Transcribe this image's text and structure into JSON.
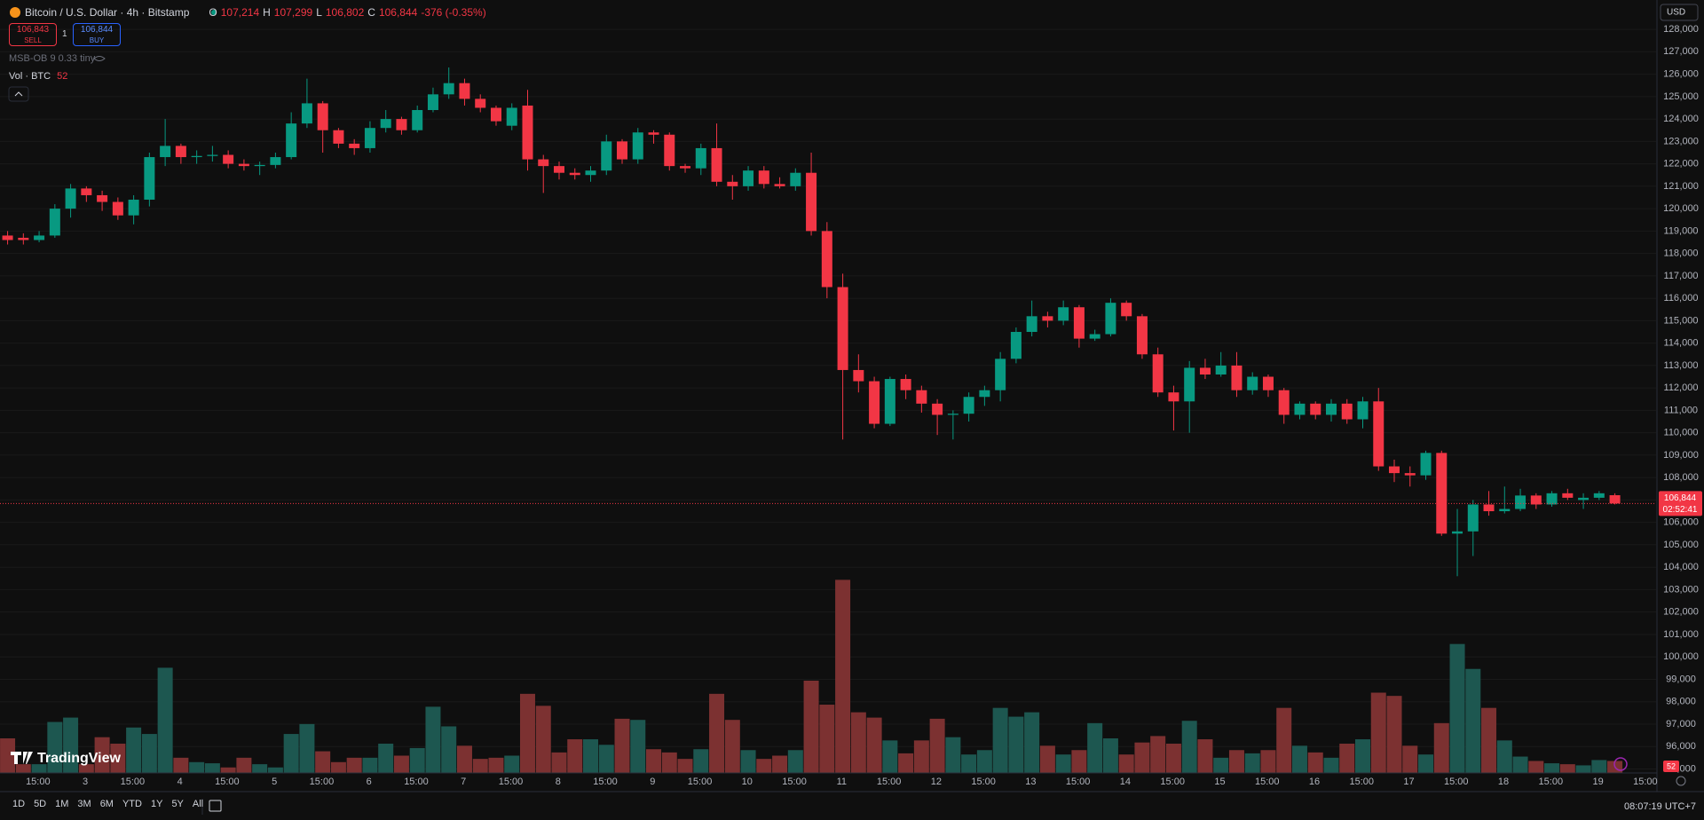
{
  "header": {
    "symbol": "Bitcoin / U.S. Dollar · 4h · Bitstamp",
    "open_label": "O",
    "open": "107,214",
    "high_label": "H",
    "high": "107,299",
    "low_label": "L",
    "low": "106,802",
    "close_label": "C",
    "close": "106,844",
    "change": "-376 (-0.35%)"
  },
  "trade": {
    "sell_price": "106,843",
    "sell": "SELL",
    "quantity": "1",
    "buy_price": "106,844",
    "buy": "BUY"
  },
  "indicators": [
    "MSB-OB 9 0.33 tiny"
  ],
  "volume_legend": {
    "label": "Vol · BTC",
    "value": "52"
  },
  "price_tag": {
    "price": "106,844",
    "countdown": "02:52:41"
  },
  "currency": "USD",
  "ranges": [
    "1D",
    "5D",
    "1M",
    "3M",
    "6M",
    "YTD",
    "1Y",
    "5Y",
    "All"
  ],
  "clock": "08:07:19 UTC+7",
  "brand": "TradingView",
  "chart_data": {
    "type": "candlestick",
    "up_color": "#089981",
    "down_color": "#f23645",
    "volume_up_color": "#1d5750",
    "volume_down_color": "#7c3131",
    "grid": true,
    "ylim": [
      94860,
      129310
    ],
    "yticks": [
      {
        "value": 128000,
        "label": "128,000"
      },
      {
        "value": 127000,
        "label": "127,000"
      },
      {
        "value": 126000,
        "label": "126,000"
      },
      {
        "value": 125000,
        "label": "125,000"
      },
      {
        "value": 124000,
        "label": "124,000"
      },
      {
        "value": 123000,
        "label": "123,000"
      },
      {
        "value": 122000,
        "label": "122,000"
      },
      {
        "value": 121000,
        "label": "121,000"
      },
      {
        "value": 120000,
        "label": "120,000"
      },
      {
        "value": 119000,
        "label": "119,000"
      },
      {
        "value": 118000,
        "label": "118,000"
      },
      {
        "value": 117000,
        "label": "117,000"
      },
      {
        "value": 116000,
        "label": "116,000"
      },
      {
        "value": 115000,
        "label": "115,000"
      },
      {
        "value": 114000,
        "label": "114,000"
      },
      {
        "value": 113000,
        "label": "113,000"
      },
      {
        "value": 112000,
        "label": "112,000"
      },
      {
        "value": 111000,
        "label": "111,000"
      },
      {
        "value": 110000,
        "label": "110,000"
      },
      {
        "value": 109000,
        "label": "109,000"
      },
      {
        "value": 108000,
        "label": "108,000"
      },
      {
        "value": 107000,
        "label": "107,000"
      },
      {
        "value": 106000,
        "label": "106,000"
      },
      {
        "value": 105000,
        "label": "105,000"
      },
      {
        "value": 104000,
        "label": "104,000"
      },
      {
        "value": 103000,
        "label": "103,000"
      },
      {
        "value": 102000,
        "label": "102,000"
      },
      {
        "value": 101000,
        "label": "101,000"
      },
      {
        "value": 100000,
        "label": "100,000"
      },
      {
        "value": 99000,
        "label": "99,000"
      },
      {
        "value": 98000,
        "label": "98,000"
      },
      {
        "value": 97000,
        "label": "97,000"
      },
      {
        "value": 96000,
        "label": "96,000"
      },
      {
        "value": 95000,
        "label": "95,000"
      }
    ],
    "time_labels": [
      "15:00",
      "3",
      "15:00",
      "4",
      "15:00",
      "5",
      "15:00",
      "6",
      "15:00",
      "7",
      "15:00",
      "8",
      "15:00",
      "9",
      "15:00",
      "10",
      "15:00",
      "11",
      "15:00",
      "12",
      "15:00",
      "13",
      "15:00",
      "14",
      "15:00",
      "15",
      "15:00",
      "16",
      "15:00",
      "17",
      "15:00",
      "18",
      "15:00",
      "19",
      "15:00"
    ],
    "candles": [
      {
        "open": 118800,
        "high": 119000,
        "low": 118400,
        "close": 118600
      },
      {
        "open": 118700,
        "high": 118900,
        "low": 118400,
        "close": 118600
      },
      {
        "open": 118600,
        "high": 119000,
        "low": 118500,
        "close": 118800
      },
      {
        "open": 118800,
        "high": 120200,
        "low": 118700,
        "close": 120000
      },
      {
        "open": 120000,
        "high": 121100,
        "low": 119600,
        "close": 120900
      },
      {
        "open": 120900,
        "high": 121000,
        "low": 120300,
        "close": 120600
      },
      {
        "open": 120600,
        "high": 120800,
        "low": 119900,
        "close": 120300
      },
      {
        "open": 120300,
        "high": 120500,
        "low": 119500,
        "close": 119700
      },
      {
        "open": 119700,
        "high": 120600,
        "low": 119300,
        "close": 120400
      },
      {
        "open": 120400,
        "high": 122500,
        "low": 120100,
        "close": 122300
      },
      {
        "open": 122300,
        "high": 124000,
        "low": 121900,
        "close": 122800
      },
      {
        "open": 122800,
        "high": 122900,
        "low": 122000,
        "close": 122300
      },
      {
        "open": 122300,
        "high": 122600,
        "low": 122000,
        "close": 122350
      },
      {
        "open": 122350,
        "high": 122800,
        "low": 122100,
        "close": 122400
      },
      {
        "open": 122400,
        "high": 122600,
        "low": 121800,
        "close": 122000
      },
      {
        "open": 122000,
        "high": 122200,
        "low": 121700,
        "close": 121900
      },
      {
        "open": 121900,
        "high": 122100,
        "low": 121500,
        "close": 121950
      },
      {
        "open": 121950,
        "high": 122500,
        "low": 121800,
        "close": 122300
      },
      {
        "open": 122300,
        "high": 124300,
        "low": 122200,
        "close": 123800
      },
      {
        "open": 123800,
        "high": 125800,
        "low": 123600,
        "close": 124700
      },
      {
        "open": 124700,
        "high": 124800,
        "low": 122500,
        "close": 123500
      },
      {
        "open": 123500,
        "high": 123600,
        "low": 122700,
        "close": 122900
      },
      {
        "open": 122900,
        "high": 123100,
        "low": 122400,
        "close": 122700
      },
      {
        "open": 122700,
        "high": 123900,
        "low": 122500,
        "close": 123600
      },
      {
        "open": 123600,
        "high": 124400,
        "low": 123400,
        "close": 124000
      },
      {
        "open": 124000,
        "high": 124100,
        "low": 123300,
        "close": 123500
      },
      {
        "open": 123500,
        "high": 124600,
        "low": 123400,
        "close": 124400
      },
      {
        "open": 124400,
        "high": 125400,
        "low": 124300,
        "close": 125100
      },
      {
        "open": 125100,
        "high": 126300,
        "low": 124900,
        "close": 125600
      },
      {
        "open": 125600,
        "high": 125800,
        "low": 124600,
        "close": 124900
      },
      {
        "open": 124900,
        "high": 125100,
        "low": 124300,
        "close": 124500
      },
      {
        "open": 124500,
        "high": 124600,
        "low": 123700,
        "close": 123900
      },
      {
        "open": 123700,
        "high": 124700,
        "low": 123500,
        "close": 124500
      },
      {
        "open": 124600,
        "high": 125300,
        "low": 121700,
        "close": 122200
      },
      {
        "open": 122200,
        "high": 122400,
        "low": 120700,
        "close": 121900
      },
      {
        "open": 121900,
        "high": 122100,
        "low": 121300,
        "close": 121600
      },
      {
        "open": 121600,
        "high": 121800,
        "low": 121300,
        "close": 121500
      },
      {
        "open": 121500,
        "high": 121900,
        "low": 121200,
        "close": 121700
      },
      {
        "open": 121700,
        "high": 123300,
        "low": 121500,
        "close": 123000
      },
      {
        "open": 123000,
        "high": 123100,
        "low": 122000,
        "close": 122200
      },
      {
        "open": 122200,
        "high": 123600,
        "low": 122000,
        "close": 123400
      },
      {
        "open": 123400,
        "high": 123500,
        "low": 122900,
        "close": 123300
      },
      {
        "open": 123300,
        "high": 123400,
        "low": 121700,
        "close": 121900
      },
      {
        "open": 121900,
        "high": 122000,
        "low": 121600,
        "close": 121800
      },
      {
        "open": 121800,
        "high": 122900,
        "low": 121500,
        "close": 122700
      },
      {
        "open": 122700,
        "high": 123800,
        "low": 121000,
        "close": 121200
      },
      {
        "open": 121200,
        "high": 121500,
        "low": 120400,
        "close": 121000
      },
      {
        "open": 121000,
        "high": 121900,
        "low": 120800,
        "close": 121700
      },
      {
        "open": 121700,
        "high": 121900,
        "low": 120900,
        "close": 121100
      },
      {
        "open": 121100,
        "high": 121400,
        "low": 120900,
        "close": 121000
      },
      {
        "open": 121000,
        "high": 121800,
        "low": 120800,
        "close": 121600
      },
      {
        "open": 121600,
        "high": 122500,
        "low": 118800,
        "close": 119000
      },
      {
        "open": 119000,
        "high": 119400,
        "low": 116000,
        "close": 116500
      },
      {
        "open": 116500,
        "high": 117100,
        "low": 109700,
        "close": 112800
      },
      {
        "open": 112800,
        "high": 113500,
        "low": 111800,
        "close": 112300
      },
      {
        "open": 112300,
        "high": 112500,
        "low": 110200,
        "close": 110400
      },
      {
        "open": 110400,
        "high": 112500,
        "low": 110300,
        "close": 112400
      },
      {
        "open": 112400,
        "high": 112600,
        "low": 111500,
        "close": 111900
      },
      {
        "open": 111900,
        "high": 112100,
        "low": 110900,
        "close": 111300
      },
      {
        "open": 111300,
        "high": 111500,
        "low": 109900,
        "close": 110800
      },
      {
        "open": 110800,
        "high": 111000,
        "low": 109700,
        "close": 110850
      },
      {
        "open": 110850,
        "high": 111800,
        "low": 110500,
        "close": 111600
      },
      {
        "open": 111600,
        "high": 112100,
        "low": 111200,
        "close": 111900
      },
      {
        "open": 111900,
        "high": 113600,
        "low": 111400,
        "close": 113300
      },
      {
        "open": 113300,
        "high": 114700,
        "low": 113100,
        "close": 114500
      },
      {
        "open": 114500,
        "high": 115900,
        "low": 114300,
        "close": 115200
      },
      {
        "open": 115200,
        "high": 115400,
        "low": 114700,
        "close": 115000
      },
      {
        "open": 115000,
        "high": 115900,
        "low": 114800,
        "close": 115600
      },
      {
        "open": 115600,
        "high": 115700,
        "low": 113800,
        "close": 114200
      },
      {
        "open": 114200,
        "high": 114600,
        "low": 114100,
        "close": 114400
      },
      {
        "open": 114400,
        "high": 116000,
        "low": 114300,
        "close": 115800
      },
      {
        "open": 115800,
        "high": 115900,
        "low": 115000,
        "close": 115200
      },
      {
        "open": 115200,
        "high": 115300,
        "low": 113300,
        "close": 113500
      },
      {
        "open": 113500,
        "high": 113800,
        "low": 111600,
        "close": 111800
      },
      {
        "open": 111800,
        "high": 112100,
        "low": 110100,
        "close": 111400
      },
      {
        "open": 111400,
        "high": 113200,
        "low": 110000,
        "close": 112900
      },
      {
        "open": 112900,
        "high": 113300,
        "low": 112400,
        "close": 112600
      },
      {
        "open": 112600,
        "high": 113600,
        "low": 112500,
        "close": 113000
      },
      {
        "open": 113000,
        "high": 113600,
        "low": 111600,
        "close": 111900
      },
      {
        "open": 111900,
        "high": 112700,
        "low": 111700,
        "close": 112500
      },
      {
        "open": 112500,
        "high": 112600,
        "low": 111600,
        "close": 111900
      },
      {
        "open": 111900,
        "high": 112000,
        "low": 110400,
        "close": 110800
      },
      {
        "open": 110800,
        "high": 111400,
        "low": 110600,
        "close": 111300
      },
      {
        "open": 111300,
        "high": 111400,
        "low": 110600,
        "close": 110800
      },
      {
        "open": 110800,
        "high": 111500,
        "low": 110500,
        "close": 111300
      },
      {
        "open": 111300,
        "high": 111500,
        "low": 110400,
        "close": 110600
      },
      {
        "open": 110600,
        "high": 111600,
        "low": 110200,
        "close": 111400
      },
      {
        "open": 111400,
        "high": 112000,
        "low": 108300,
        "close": 108500
      },
      {
        "open": 108500,
        "high": 108800,
        "low": 107800,
        "close": 108200
      },
      {
        "open": 108200,
        "high": 108500,
        "low": 107600,
        "close": 108100
      },
      {
        "open": 108100,
        "high": 109200,
        "low": 107900,
        "close": 109100
      },
      {
        "open": 109100,
        "high": 109200,
        "low": 105400,
        "close": 105500
      },
      {
        "open": 105500,
        "high": 106600,
        "low": 103600,
        "close": 105600
      },
      {
        "open": 105600,
        "high": 107000,
        "low": 104500,
        "close": 106800
      },
      {
        "open": 106800,
        "high": 107400,
        "low": 106300,
        "close": 106500
      },
      {
        "open": 106500,
        "high": 107600,
        "low": 106400,
        "close": 106600
      },
      {
        "open": 106600,
        "high": 107500,
        "low": 106500,
        "close": 107200
      },
      {
        "open": 107200,
        "high": 107300,
        "low": 106600,
        "close": 106800
      },
      {
        "open": 106800,
        "high": 107400,
        "low": 106700,
        "close": 107300
      },
      {
        "open": 107300,
        "high": 107500,
        "low": 107000,
        "close": 107100
      },
      {
        "open": 107000,
        "high": 107300,
        "low": 106600,
        "close": 107100
      },
      {
        "open": 107100,
        "high": 107400,
        "low": 107000,
        "close": 107300
      },
      {
        "open": 107214,
        "high": 107299,
        "low": 106802,
        "close": 106844
      }
    ],
    "volume": [
      150,
      38,
      38,
      221,
      240,
      38,
      155,
      127,
      197,
      169,
      456,
      66,
      47,
      42,
      24,
      66,
      38,
      24,
      169,
      212,
      94,
      47,
      66,
      66,
      127,
      75,
      108,
      287,
      202,
      118,
      61,
      66,
      75,
      343,
      291,
      89,
      146,
      146,
      122,
      235,
      230,
      103,
      89,
      61,
      103,
      343,
      230,
      99,
      61,
      75,
      99,
      400,
      296,
      837,
      263,
      240,
      141,
      85,
      141,
      235,
      155,
      80,
      99,
      282,
      244,
      263,
      118,
      80,
      99,
      216,
      150,
      80,
      132,
      160,
      127,
      226,
      146,
      66,
      99,
      85,
      99,
      282,
      118,
      89,
      66,
      127,
      146,
      348,
      334,
      118,
      80,
      216,
      559,
      451,
      282,
      141,
      71,
      52,
      42,
      38,
      33,
      56,
      52
    ]
  }
}
